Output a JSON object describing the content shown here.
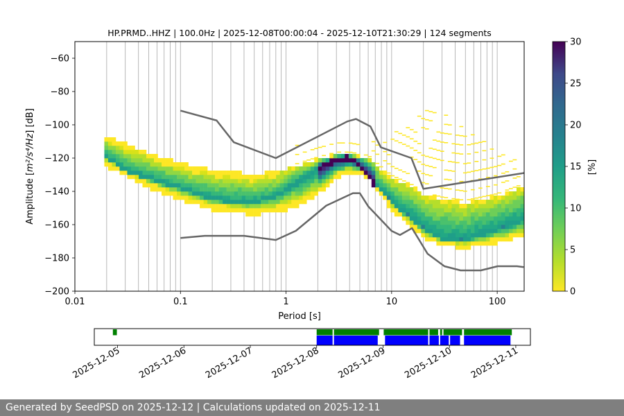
{
  "chart_data": {
    "type": "heatmap",
    "title": "HP.PRMD..HHZ | 100.0Hz | 2025-12-08T00:00:04 - 2025-12-10T21:30:29 | 124 segments",
    "xlabel": "Period [s]",
    "ylabel_prefix": "Amplitude [",
    "ylabel_math": "m²/s⁴/Hz",
    "ylabel_suffix": "] [dB]",
    "x_scale": "log",
    "xlim": [
      0.01,
      180
    ],
    "ylim": [
      -200,
      -50
    ],
    "x_ticks": [
      {
        "value": 0.01,
        "label": "0.01"
      },
      {
        "value": 0.1,
        "label": "0.1"
      },
      {
        "value": 1,
        "label": "1"
      },
      {
        "value": 10,
        "label": "10"
      },
      {
        "value": 100,
        "label": "100"
      }
    ],
    "y_ticks": [
      {
        "value": -60,
        "label": "−60"
      },
      {
        "value": -80,
        "label": "−80"
      },
      {
        "value": -100,
        "label": "−100"
      },
      {
        "value": -120,
        "label": "−120"
      },
      {
        "value": -140,
        "label": "−140"
      },
      {
        "value": -160,
        "label": "−160"
      },
      {
        "value": -180,
        "label": "−180"
      },
      {
        "value": -200,
        "label": "−200"
      }
    ],
    "grid": true,
    "colormap": "viridis_r",
    "colorbar": {
      "label": "[%]",
      "range": [
        0,
        30
      ],
      "ticks": [
        {
          "value": 0,
          "label": "0"
        },
        {
          "value": 5,
          "label": "5"
        },
        {
          "value": 10,
          "label": "10"
        },
        {
          "value": 15,
          "label": "15"
        },
        {
          "value": 20,
          "label": "20"
        },
        {
          "value": 25,
          "label": "25"
        },
        {
          "value": 30,
          "label": "30"
        }
      ]
    },
    "psd_mode": {
      "period": [
        0.02,
        0.03,
        0.05,
        0.08,
        0.1,
        0.15,
        0.2,
        0.3,
        0.5,
        0.8,
        1,
        1.5,
        2,
        3,
        4,
        5,
        6,
        7,
        8,
        10,
        12,
        15,
        20,
        25,
        30,
        40,
        50,
        70,
        100,
        150,
        180
      ],
      "db": [
        -120,
        -128,
        -133,
        -137,
        -139,
        -143,
        -145,
        -147,
        -147,
        -144,
        -140,
        -133,
        -128,
        -122,
        -121,
        -125,
        -131,
        -137,
        -141,
        -147,
        -152,
        -156,
        -163,
        -167,
        -169,
        -171,
        -170,
        -167,
        -164,
        -160,
        -158
      ]
    },
    "psd_band_upper": {
      "period": [
        0.02,
        0.05,
        0.1,
        0.2,
        0.5,
        1,
        2,
        3,
        4,
        6,
        8,
        10,
        15,
        20,
        30,
        50,
        100,
        180
      ],
      "db": [
        -108,
        -118,
        -124,
        -128,
        -131,
        -128,
        -122,
        -119,
        -119,
        -121,
        -128,
        -133,
        -138,
        -143,
        -146,
        -148,
        -144,
        -138
      ]
    },
    "psd_band_lower": {
      "period": [
        0.02,
        0.05,
        0.1,
        0.2,
        0.5,
        1,
        2,
        3,
        4,
        6,
        8,
        10,
        15,
        20,
        30,
        50,
        100,
        180
      ],
      "db": [
        -124,
        -137,
        -144,
        -150,
        -153,
        -151,
        -141,
        -131,
        -128,
        -131,
        -142,
        -150,
        -160,
        -167,
        -172,
        -173,
        -170,
        -166
      ]
    },
    "psd_outliers": {
      "period": [
        1.5,
        2,
        3,
        5,
        8,
        10,
        15,
        20,
        22,
        25,
        30,
        40,
        60,
        100,
        150
      ],
      "db": [
        -112,
        -110,
        -108,
        -107,
        -109,
        -104,
        -100,
        -92,
        -87,
        -88,
        -92,
        -98,
        -106,
        -115,
        -120
      ]
    },
    "nhnm": {
      "period": [
        0.1,
        0.22,
        0.32,
        0.8,
        3.8,
        4.6,
        6.3,
        7.9,
        15.4,
        20,
        354.8
      ],
      "db": [
        -91.5,
        -97.4,
        -110.5,
        -120,
        -98,
        -96.5,
        -101,
        -113.5,
        -120,
        -138.5,
        -126
      ]
    },
    "nlnm": {
      "period": [
        0.1,
        0.17,
        0.4,
        0.8,
        1.24,
        2.4,
        4.3,
        5,
        6,
        10,
        12,
        15.6,
        21.9,
        31.6,
        45,
        70,
        101,
        154,
        178
      ],
      "db": [
        -168,
        -166.7,
        -166.7,
        -169.2,
        -163.7,
        -148.6,
        -141.1,
        -141.1,
        -149,
        -163.8,
        -166.2,
        -162.1,
        -177.5,
        -185,
        -187.5,
        -187.5,
        -185,
        -185,
        -185.5
      ]
    },
    "timeline": {
      "ticks": [
        "2025-12-05",
        "2025-12-06",
        "2025-12-07",
        "2025-12-08",
        "2025-12-09",
        "2025-12-10",
        "2025-12-11"
      ],
      "start_day": 4.65,
      "end_day": 11.22,
      "available_color": "#008000",
      "used_color": "#0000ff",
      "available_segments": [
        [
          4.93,
          4.99
        ],
        [
          8.0,
          8.24
        ],
        [
          8.26,
          8.94
        ],
        [
          9.01,
          9.68
        ],
        [
          9.7,
          9.83
        ],
        [
          9.86,
          9.89
        ],
        [
          9.91,
          10.19
        ],
        [
          10.22,
          10.94
        ]
      ],
      "used_segments": [
        [
          8.0,
          8.24
        ],
        [
          8.26,
          8.92
        ],
        [
          9.03,
          9.68
        ],
        [
          9.7,
          9.84
        ],
        [
          9.86,
          9.99
        ],
        [
          10.01,
          10.16
        ],
        [
          10.22,
          10.92
        ]
      ]
    }
  },
  "footer": {
    "text": "Generated by SeedPSD on 2025-12-12 | Calculations updated on 2025-12-11"
  }
}
